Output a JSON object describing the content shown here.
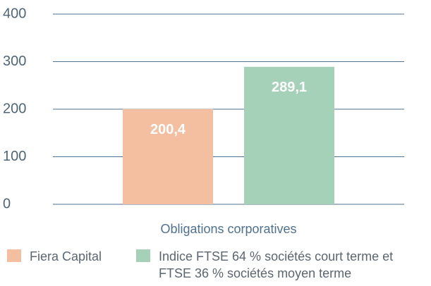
{
  "chart_data": {
    "type": "bar",
    "categories": [
      "Obligations corporatives"
    ],
    "series": [
      {
        "name": "Fiera Capital",
        "color": "#f4bea0",
        "values": [
          200.4
        ],
        "value_labels": [
          "200,4"
        ]
      },
      {
        "name": "Indice FTSE 64 % sociétés court terme et FTSE 36 % sociétés moyen terme",
        "color": "#a6d1b9",
        "values": [
          289.1
        ],
        "value_labels": [
          "289,1"
        ]
      }
    ],
    "ylim": [
      0,
      400
    ],
    "yticks": [
      0,
      100,
      200,
      300,
      400
    ],
    "grid": true,
    "legend": "bottom"
  }
}
